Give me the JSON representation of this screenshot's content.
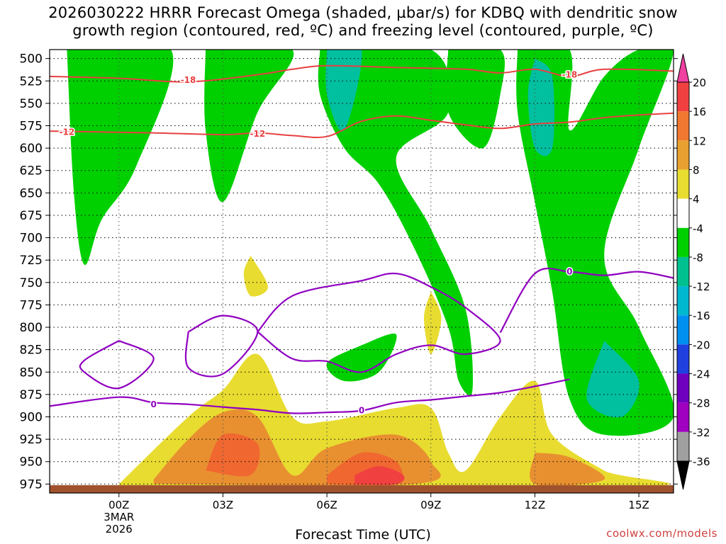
{
  "title": {
    "line1": "2026030222 HRRR Forecast Omega (shaded, µbar/s) for KDBQ with dendritic snow",
    "line2": "growth region (contoured, red, ºC) and freezing level (contoured, purple, ºC)"
  },
  "credit": "coolwx.com/models",
  "colors": {
    "green": "#00d000",
    "teal": "#00c0a0",
    "cyan": "#00b0c0",
    "yellow": "#e8dc30",
    "gold": "#e8b030",
    "orange": "#e89030",
    "redorange": "#f06830",
    "red": "#f04040",
    "contour_red": "#e84040",
    "contour_purple": "#9000c0",
    "ground": "#a0522d"
  },
  "chart_data": {
    "type": "heatmap",
    "xlabel": "Forecast Time (UTC)",
    "ylabel": "",
    "x_ticks": [
      {
        "hour": 0,
        "label": "00Z",
        "sub1": "3MAR",
        "sub2": "2026"
      },
      {
        "hour": 3,
        "label": "03Z",
        "sub1": "",
        "sub2": ""
      },
      {
        "hour": 6,
        "label": "06Z",
        "sub1": "",
        "sub2": ""
      },
      {
        "hour": 9,
        "label": "09Z",
        "sub1": "",
        "sub2": ""
      },
      {
        "hour": 12,
        "label": "12Z",
        "sub1": "",
        "sub2": ""
      },
      {
        "hour": 15,
        "label": "15Z",
        "sub1": "",
        "sub2": ""
      }
    ],
    "xlim_hours": [
      -2,
      16
    ],
    "y_ticks": [
      500,
      525,
      550,
      575,
      600,
      625,
      650,
      675,
      700,
      725,
      750,
      775,
      800,
      825,
      850,
      875,
      900,
      925,
      950,
      975
    ],
    "ylim_hPa": [
      490,
      985
    ],
    "colorbar": {
      "levels": [
        20,
        16,
        12,
        8,
        4,
        -4,
        -8,
        -12,
        -16,
        -20,
        -24,
        -28,
        -32,
        -36
      ],
      "colors": [
        "#f040a0",
        "#f04040",
        "#f07830",
        "#e8a030",
        "#e8dc30",
        "#ffffff",
        "#00d000",
        "#00c090",
        "#00b8d0",
        "#0090f0",
        "#2040e0",
        "#7000c0",
        "#a000c0",
        "#a0a0a0",
        "#000000"
      ]
    },
    "contours": {
      "dgz": [
        {
          "label": "-18",
          "points": [
            [
              -2,
              520
            ],
            [
              0,
              522
            ],
            [
              2,
              526
            ],
            [
              4,
              518
            ],
            [
              5,
              512
            ],
            [
              6,
              508
            ],
            [
              8,
              510
            ],
            [
              10,
              512
            ],
            [
              11,
              516
            ],
            [
              12,
              512
            ],
            [
              13,
              520
            ],
            [
              14,
              512
            ],
            [
              16,
              514
            ]
          ]
        },
        {
          "label": "-12",
          "points": [
            [
              -2,
              581
            ],
            [
              1,
              583
            ],
            [
              3,
              585
            ],
            [
              4,
              583
            ],
            [
              5,
              586
            ],
            [
              6,
              587
            ],
            [
              7,
              570
            ],
            [
              8,
              564
            ],
            [
              9,
              569
            ],
            [
              10,
              574
            ],
            [
              11,
              578
            ],
            [
              12,
              573
            ],
            [
              13,
              571
            ],
            [
              14,
              566
            ],
            [
              15,
              563
            ],
            [
              16,
              561
            ]
          ]
        }
      ],
      "freezing": [
        {
          "label": "0",
          "points": [
            [
              -2,
              888
            ],
            [
              0,
              878
            ],
            [
              1,
              884
            ],
            [
              2,
              886
            ],
            [
              3,
              889
            ],
            [
              4,
              892
            ],
            [
              5,
              896
            ],
            [
              6,
              895
            ],
            [
              7,
              893
            ],
            [
              8,
              884
            ],
            [
              9,
              881
            ],
            [
              10,
              877
            ],
            [
              11,
              873
            ],
            [
              12,
              866
            ],
            [
              13,
              858
            ]
          ]
        },
        {
          "label": "0",
          "points": [
            [
              0,
              815
            ],
            [
              1,
              835
            ],
            [
              0,
              868
            ],
            [
              -1,
              850
            ],
            [
              -1,
              837
            ],
            [
              0,
              815
            ]
          ]
        },
        {
          "label": "0",
          "points": [
            [
              2,
              805
            ],
            [
              3,
              787
            ],
            [
              4,
              805
            ],
            [
              3,
              852
            ],
            [
              2,
              845
            ],
            [
              2,
              805
            ]
          ]
        },
        {
          "label": "0",
          "points": [
            [
              4,
              805
            ],
            [
              5,
              765
            ],
            [
              7,
              748
            ],
            [
              8,
              740
            ],
            [
              9,
              755
            ],
            [
              10,
              778
            ],
            [
              11,
              815
            ],
            [
              10,
              830
            ],
            [
              9,
              820
            ],
            [
              8,
              830
            ],
            [
              7,
              850
            ],
            [
              6,
              838
            ],
            [
              5,
              835
            ],
            [
              4,
              805
            ]
          ]
        },
        {
          "label": "0",
          "points": [
            [
              11,
              806
            ],
            [
              12,
              740
            ],
            [
              13,
              738
            ],
            [
              14,
              742
            ],
            [
              15,
              738
            ],
            [
              16,
              745
            ]
          ]
        }
      ]
    },
    "contour_labels": [
      {
        "text": "-18",
        "hour": 2,
        "p": 524,
        "kind": "dgz"
      },
      {
        "text": "-18",
        "hour": 13,
        "p": 518,
        "kind": "dgz"
      },
      {
        "text": "-12",
        "hour": -1.5,
        "p": 582,
        "kind": "dgz"
      },
      {
        "text": "-12",
        "hour": 4,
        "p": 584,
        "kind": "dgz"
      },
      {
        "text": "0",
        "hour": 1,
        "p": 886,
        "kind": "freezing"
      },
      {
        "text": "0",
        "hour": 7,
        "p": 893,
        "kind": "freezing"
      },
      {
        "text": "0",
        "hour": 13,
        "p": 738,
        "kind": "freezing"
      }
    ],
    "shaded_regions": [
      {
        "level": "green",
        "points": [
          [
            -1.5,
            490
          ],
          [
            1.5,
            490
          ],
          [
            0.5,
            620
          ],
          [
            -0.5,
            680
          ],
          [
            -1,
            730
          ],
          [
            -1.3,
            650
          ],
          [
            -1.5,
            490
          ]
        ]
      },
      {
        "level": "green",
        "points": [
          [
            2.5,
            490
          ],
          [
            5,
            490
          ],
          [
            4,
            560
          ],
          [
            3,
            660
          ],
          [
            2.5,
            580
          ],
          [
            2.5,
            490
          ]
        ]
      },
      {
        "level": "green",
        "points": [
          [
            5.8,
            490
          ],
          [
            9,
            490
          ],
          [
            9.5,
            560
          ],
          [
            8,
            610
          ],
          [
            9,
            690
          ],
          [
            10,
            780
          ],
          [
            10.2,
            870
          ],
          [
            9.8,
            860
          ],
          [
            9.5,
            800
          ],
          [
            8.5,
            710
          ],
          [
            7.5,
            640
          ],
          [
            6.5,
            600
          ],
          [
            5.8,
            540
          ],
          [
            5.8,
            490
          ]
        ]
      },
      {
        "level": "green",
        "points": [
          [
            9.5,
            490
          ],
          [
            11,
            490
          ],
          [
            11,
            540
          ],
          [
            10.5,
            600
          ],
          [
            9.5,
            560
          ],
          [
            9.5,
            490
          ]
        ]
      },
      {
        "level": "green",
        "points": [
          [
            11.5,
            490
          ],
          [
            13,
            490
          ],
          [
            13,
            580
          ],
          [
            14,
            520
          ],
          [
            15,
            490
          ],
          [
            16,
            490
          ],
          [
            15,
            600
          ],
          [
            14,
            720
          ],
          [
            15,
            800
          ],
          [
            16,
            900
          ],
          [
            14,
            920
          ],
          [
            13,
            880
          ],
          [
            12.5,
            760
          ],
          [
            12,
            660
          ],
          [
            11.5,
            560
          ],
          [
            11.5,
            490
          ]
        ]
      },
      {
        "level": "green",
        "points": [
          [
            7,
            820
          ],
          [
            8,
            808
          ],
          [
            7.5,
            850
          ],
          [
            6.5,
            860
          ],
          [
            6,
            840
          ],
          [
            7,
            820
          ]
        ]
      },
      {
        "level": "teal",
        "points": [
          [
            6,
            490
          ],
          [
            7,
            490
          ],
          [
            6.5,
            580
          ],
          [
            6,
            540
          ],
          [
            6,
            490
          ]
        ]
      },
      {
        "level": "teal",
        "points": [
          [
            12,
            500
          ],
          [
            12.5,
            520
          ],
          [
            12.5,
            600
          ],
          [
            12,
            600
          ],
          [
            11.8,
            540
          ],
          [
            12,
            500
          ]
        ]
      },
      {
        "level": "teal",
        "points": [
          [
            14,
            815
          ],
          [
            15,
            860
          ],
          [
            14.5,
            900
          ],
          [
            13.5,
            880
          ],
          [
            14,
            815
          ]
        ]
      },
      {
        "level": "yellow",
        "points": [
          [
            0,
            975
          ],
          [
            2,
            900
          ],
          [
            3,
            870
          ],
          [
            4,
            830
          ],
          [
            5,
            900
          ],
          [
            6,
            905
          ],
          [
            8,
            890
          ],
          [
            9,
            890
          ],
          [
            9.5,
            940
          ],
          [
            10,
            960
          ],
          [
            11,
            900
          ],
          [
            12,
            860
          ],
          [
            12.5,
            920
          ],
          [
            14,
            960
          ],
          [
            15,
            978
          ],
          [
            0,
            978
          ]
        ]
      },
      {
        "level": "yellow",
        "points": [
          [
            3.8,
            720
          ],
          [
            4.3,
            755
          ],
          [
            3.8,
            765
          ],
          [
            3.6,
            740
          ],
          [
            3.8,
            720
          ]
        ]
      },
      {
        "level": "yellow",
        "points": [
          [
            9,
            760
          ],
          [
            9.3,
            790
          ],
          [
            9,
            830
          ],
          [
            8.8,
            790
          ],
          [
            9,
            760
          ]
        ]
      },
      {
        "level": "orange",
        "points": [
          [
            1,
            970
          ],
          [
            2,
            925
          ],
          [
            3,
            895
          ],
          [
            4,
            900
          ],
          [
            5,
            965
          ],
          [
            6,
            935
          ],
          [
            8,
            920
          ],
          [
            9,
            950
          ],
          [
            8.5,
            975
          ],
          [
            1,
            975
          ]
        ]
      },
      {
        "level": "orange",
        "points": [
          [
            12,
            940
          ],
          [
            13,
            945
          ],
          [
            14,
            970
          ],
          [
            12,
            975
          ],
          [
            12,
            940
          ]
        ]
      },
      {
        "level": "redorange",
        "points": [
          [
            2.5,
            960
          ],
          [
            3,
            920
          ],
          [
            4,
            930
          ],
          [
            3.8,
            965
          ],
          [
            2.5,
            960
          ]
        ]
      },
      {
        "level": "redorange",
        "points": [
          [
            6,
            965
          ],
          [
            7,
            940
          ],
          [
            8,
            950
          ],
          [
            8,
            975
          ],
          [
            6,
            975
          ]
        ]
      },
      {
        "level": "red",
        "points": [
          [
            6.8,
            965
          ],
          [
            7.5,
            955
          ],
          [
            8.2,
            965
          ],
          [
            8,
            975
          ],
          [
            6.8,
            975
          ]
        ]
      }
    ]
  }
}
